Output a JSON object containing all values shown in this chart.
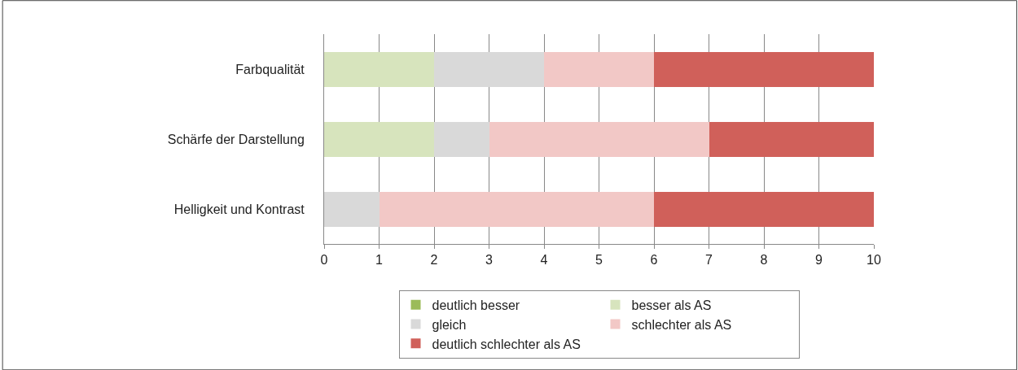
{
  "chart_data": {
    "type": "bar",
    "orientation": "horizontal",
    "stacked": true,
    "categories": [
      "Farbqualität",
      "Schärfe der Darstellung",
      "Helligkeit und Kontrast"
    ],
    "series": [
      {
        "name": "deutlich besser",
        "color": "#9bbb59",
        "values": [
          0,
          0,
          0
        ]
      },
      {
        "name": "besser als AS",
        "color": "#d7e4bd",
        "values": [
          2,
          2,
          0
        ]
      },
      {
        "name": "gleich",
        "color": "#d9d9d9",
        "values": [
          2,
          1,
          1
        ]
      },
      {
        "name": "schlechter als AS",
        "color": "#f2c8c6",
        "values": [
          2,
          4,
          5
        ]
      },
      {
        "name": "deutlich schlechter als AS",
        "color": "#d0605a",
        "values": [
          4,
          3,
          4
        ]
      }
    ],
    "xlim": [
      0,
      10
    ],
    "xticks": [
      0,
      1,
      2,
      3,
      4,
      5,
      6,
      7,
      8,
      9,
      10
    ],
    "grid": "x",
    "legend": "bottom"
  }
}
